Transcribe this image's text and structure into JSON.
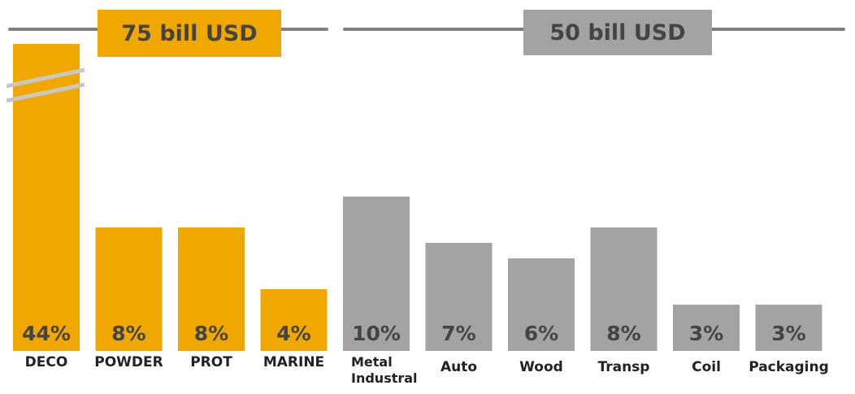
{
  "groups": [
    {
      "label": "75 bill USD",
      "color": "#F0A800"
    },
    {
      "label": "50 bill USD",
      "color": "#A3A3A3"
    }
  ],
  "chart_data": {
    "type": "bar",
    "title": "",
    "xlabel": "",
    "ylabel": "",
    "axis_break": "DECO",
    "series": [
      {
        "group": "75 bill USD",
        "categories": [
          "DECO",
          "POWDER",
          "PROT",
          "MARINE"
        ],
        "values": [
          44,
          8,
          8,
          4
        ],
        "labels": [
          "44%",
          "8%",
          "8%",
          "4%"
        ]
      },
      {
        "group": "50 bill USD",
        "categories": [
          "Metal Industral",
          "Auto",
          "Wood",
          "Transp",
          "Coil",
          "Packaging"
        ],
        "values": [
          10,
          7,
          6,
          8,
          3,
          3
        ],
        "labels": [
          "10%",
          "7%",
          "6%",
          "8%",
          "3%",
          "3%"
        ]
      }
    ]
  }
}
